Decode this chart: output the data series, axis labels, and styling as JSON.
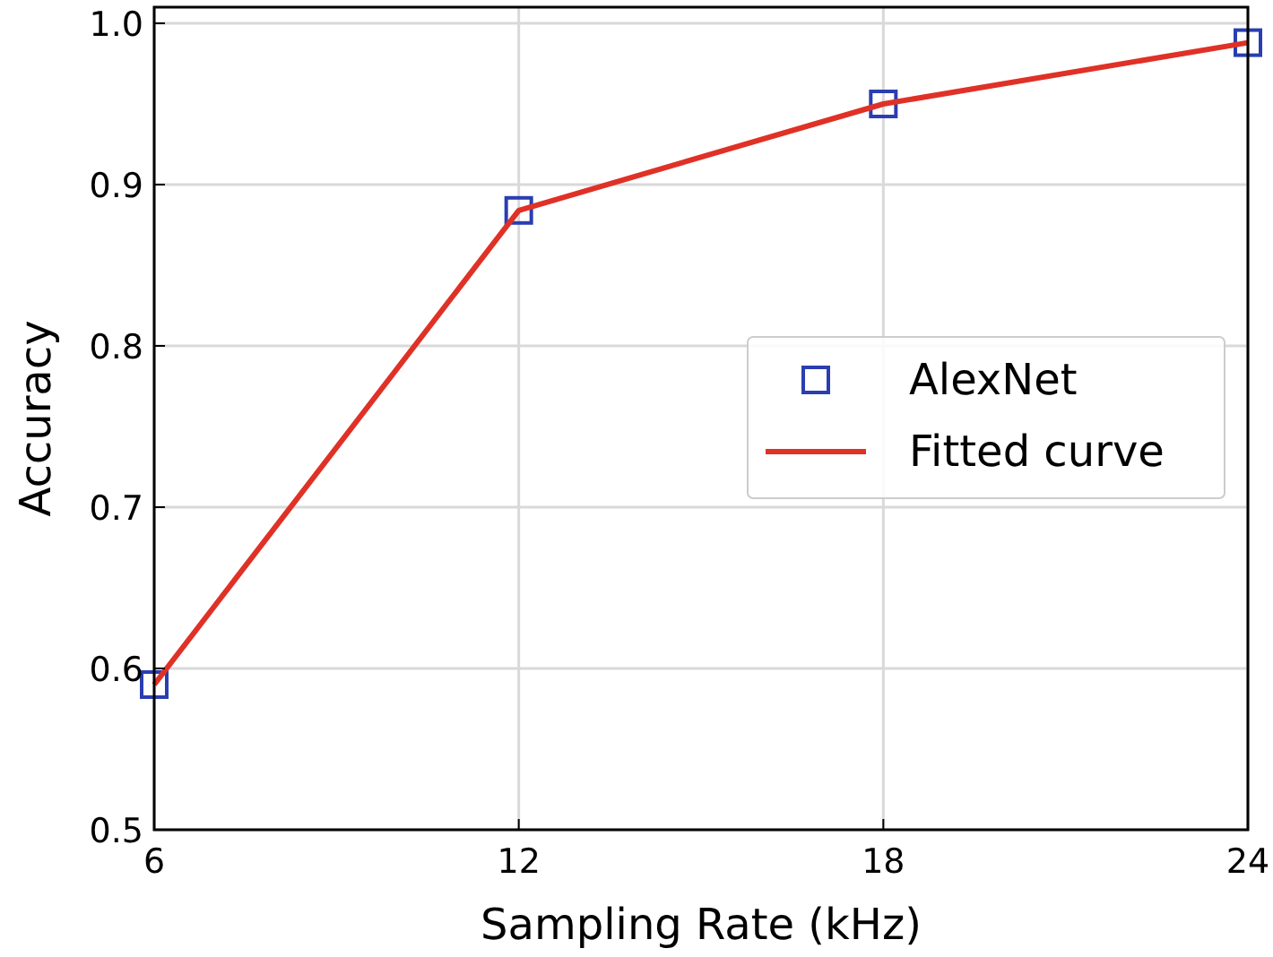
{
  "chart_data": {
    "type": "scatter",
    "xlabel": "Sampling Rate (kHz)",
    "ylabel": "Accuracy",
    "xlim": [
      6,
      24
    ],
    "xticks": [
      6,
      12,
      18,
      24
    ],
    "ylim": [
      0.5,
      1.01
    ],
    "yticks": [
      0.5,
      0.6,
      0.7,
      0.8,
      0.9,
      {
        "value": 1,
        "label": "1.0"
      }
    ],
    "x": [
      6,
      12,
      18,
      24
    ],
    "series": [
      {
        "name": "AlexNet",
        "color": "#2a3eb1",
        "marker": "square",
        "values": [
          0.59,
          0.884,
          0.95,
          0.988
        ]
      },
      {
        "name": "Fitted curve",
        "type": "line",
        "color": "#e03127",
        "marker": "none",
        "line_style": "solid",
        "values": [
          0.59,
          0.884,
          0.95,
          0.988
        ]
      }
    ],
    "grid": true,
    "legend": "right"
  }
}
